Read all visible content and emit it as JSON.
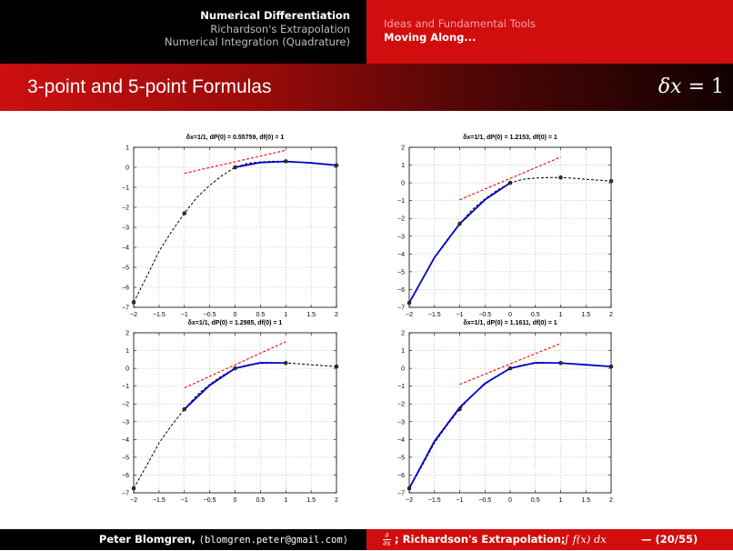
{
  "header": {
    "left": [
      "Numerical Differentiation",
      "Richardson's Extrapolation",
      "Numerical Integration (Quadrature)"
    ],
    "right": [
      "Ideas and Fundamental Tools",
      "Moving Along..."
    ]
  },
  "slide": {
    "title": "3-point and 5-point Formulas",
    "title_right_var": "δx",
    "title_right_rest": " = 1"
  },
  "footer": {
    "author": "Peter Blomgren,",
    "email": "⟨blomgren.peter@gmail.com⟩",
    "deriv_num": "∂",
    "deriv_den": "∂x",
    "desc": "; Richardson's Extrapolation;",
    "integral": "∫ f(x) dx",
    "page": "— (20/55)"
  },
  "colors": {
    "blue": "#0000cc",
    "red": "#ff0000",
    "black": "#000000",
    "grid": "#9a9a9a"
  },
  "chart_data": [
    {
      "type": "line",
      "title": "δx=1/1,  dP(0) = 0.55759,  df(0) = 1",
      "xlim": [
        -2,
        2
      ],
      "ylim": [
        -7,
        1
      ],
      "xticks": [
        "−2",
        "−1.5",
        "−1",
        "−0.5",
        "0",
        "0.5",
        "1",
        "1.5",
        "2"
      ],
      "yticks": [
        "1",
        "0",
        "−1",
        "−2",
        "−3",
        "−4",
        "−5",
        "−6",
        "−7"
      ],
      "yticks_values": [
        1,
        0,
        -1,
        -2,
        -3,
        -4,
        -5,
        -6,
        -7
      ],
      "nodes": [
        [
          -2,
          -6.75
        ],
        [
          -1,
          -2.3
        ],
        [
          0,
          0
        ],
        [
          1,
          0.3
        ],
        [
          2,
          0.1
        ]
      ],
      "blue_curve": [
        [
          0,
          0
        ],
        [
          0.5,
          0.24
        ],
        [
          1,
          0.29
        ],
        [
          1.5,
          0.22
        ],
        [
          2,
          0.1
        ]
      ],
      "tangent": [
        [
          -1,
          -0.3
        ],
        [
          1,
          0.85
        ]
      ]
    },
    {
      "type": "line",
      "title": "δx=1/1,  dP(0) = 1.2153,  df(0) = 1",
      "xlim": [
        -2,
        2
      ],
      "ylim": [
        -7,
        2
      ],
      "xticks": [
        "−2",
        "−1.5",
        "−1",
        "−0.5",
        "0",
        "0.5",
        "1",
        "1.5",
        "2"
      ],
      "yticks": [
        "2",
        "1",
        "0",
        "−1",
        "−2",
        "−3",
        "−4",
        "−5",
        "−6",
        "−7"
      ],
      "yticks_values": [
        2,
        1,
        0,
        -1,
        -2,
        -3,
        -4,
        -5,
        -6,
        -7
      ],
      "nodes": [
        [
          -2,
          -6.75
        ],
        [
          -1,
          -2.3
        ],
        [
          0,
          0
        ],
        [
          1,
          0.3
        ],
        [
          2,
          0.1
        ]
      ],
      "blue_curve": [
        [
          -2,
          -6.75
        ],
        [
          -1.5,
          -4.2
        ],
        [
          -1,
          -2.3
        ],
        [
          -0.5,
          -0.95
        ],
        [
          0,
          0
        ]
      ],
      "tangent": [
        [
          -1,
          -0.95
        ],
        [
          1,
          1.45
        ]
      ]
    },
    {
      "type": "line",
      "title": "δx=1/1,  dP(0) = 1.2985,  df(0) = 1",
      "xlim": [
        -2,
        2
      ],
      "ylim": [
        -7,
        2
      ],
      "xticks": [
        "−2",
        "−1.5",
        "−1",
        "−0.5",
        "0",
        "0.5",
        "1",
        "1.5",
        "2"
      ],
      "yticks": [
        "2",
        "1",
        "0",
        "−1",
        "−2",
        "−3",
        "−4",
        "−5",
        "−6",
        "−7"
      ],
      "yticks_values": [
        2,
        1,
        0,
        -1,
        -2,
        -3,
        -4,
        -5,
        -6,
        -7
      ],
      "nodes": [
        [
          -2,
          -6.75
        ],
        [
          -1,
          -2.3
        ],
        [
          0,
          0
        ],
        [
          1,
          0.3
        ],
        [
          2,
          0.1
        ]
      ],
      "blue_curve": [
        [
          -1,
          -2.3
        ],
        [
          -0.5,
          -0.95
        ],
        [
          0,
          0
        ],
        [
          0.5,
          0.32
        ],
        [
          1,
          0.3
        ]
      ],
      "tangent": [
        [
          -1,
          -1.1
        ],
        [
          1,
          1.5
        ]
      ]
    },
    {
      "type": "line",
      "title": "δx=1/1,  dP(0) = 1.1611,  df(0) = 1",
      "xlim": [
        -2,
        2
      ],
      "ylim": [
        -7,
        2
      ],
      "xticks": [
        "−2",
        "−1.5",
        "−1",
        "−0.5",
        "0",
        "0.5",
        "1",
        "1.5",
        "2"
      ],
      "yticks": [
        "2",
        "1",
        "0",
        "−1",
        "−2",
        "−3",
        "−4",
        "−5",
        "−6",
        "−7"
      ],
      "yticks_values": [
        2,
        1,
        0,
        -1,
        -2,
        -3,
        -4,
        -5,
        -6,
        -7
      ],
      "nodes": [
        [
          -2,
          -6.75
        ],
        [
          -1,
          -2.3
        ],
        [
          0,
          0
        ],
        [
          1,
          0.3
        ],
        [
          2,
          0.1
        ]
      ],
      "blue_curve": [
        [
          -2,
          -6.75
        ],
        [
          -1.5,
          -4.1
        ],
        [
          -1,
          -2.2
        ],
        [
          -0.5,
          -0.85
        ],
        [
          0,
          0
        ],
        [
          0.5,
          0.32
        ],
        [
          1,
          0.3
        ],
        [
          1.5,
          0.2
        ],
        [
          2,
          0.1
        ]
      ],
      "tangent": [
        [
          -1,
          -0.9
        ],
        [
          1,
          1.4
        ]
      ]
    }
  ]
}
